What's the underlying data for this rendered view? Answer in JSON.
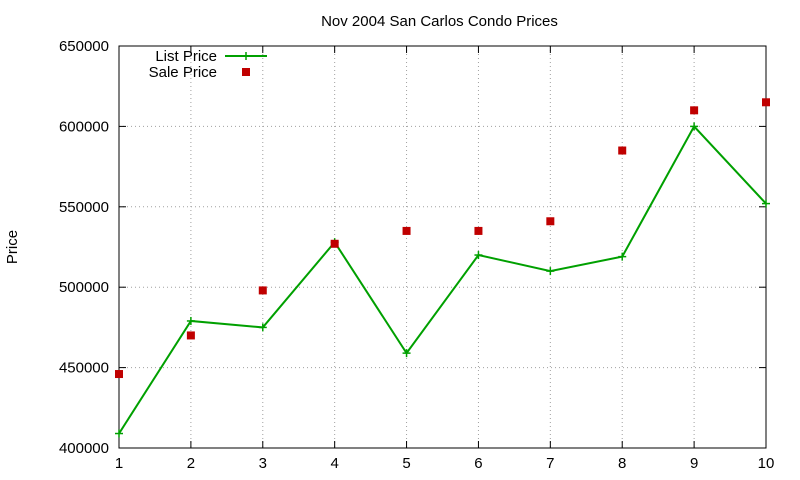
{
  "chart_data": {
    "type": "line",
    "title": "Nov 2004 San Carlos Condo Prices",
    "xlabel": "",
    "ylabel": "Price",
    "x": [
      1,
      2,
      3,
      4,
      5,
      6,
      7,
      8,
      9,
      10
    ],
    "xlim": [
      1,
      10
    ],
    "ylim": [
      400000,
      650000
    ],
    "x_ticks": [
      "1",
      "2",
      "3",
      "4",
      "5",
      "6",
      "7",
      "8",
      "9",
      "10"
    ],
    "y_ticks": [
      "400000",
      "450000",
      "500000",
      "550000",
      "600000",
      "650000"
    ],
    "grid": true,
    "legend_position": "top-left",
    "series": [
      {
        "name": "List Price",
        "style": "line-with-plus-markers",
        "color": "#00a000",
        "values": [
          409000,
          479000,
          475000,
          528000,
          459000,
          520000,
          510000,
          519000,
          600000,
          552000
        ]
      },
      {
        "name": "Sale Price",
        "style": "square-points",
        "color": "#c00000",
        "values": [
          446000,
          470000,
          498000,
          527000,
          535000,
          535000,
          541000,
          585000,
          610000,
          615000
        ]
      }
    ]
  }
}
